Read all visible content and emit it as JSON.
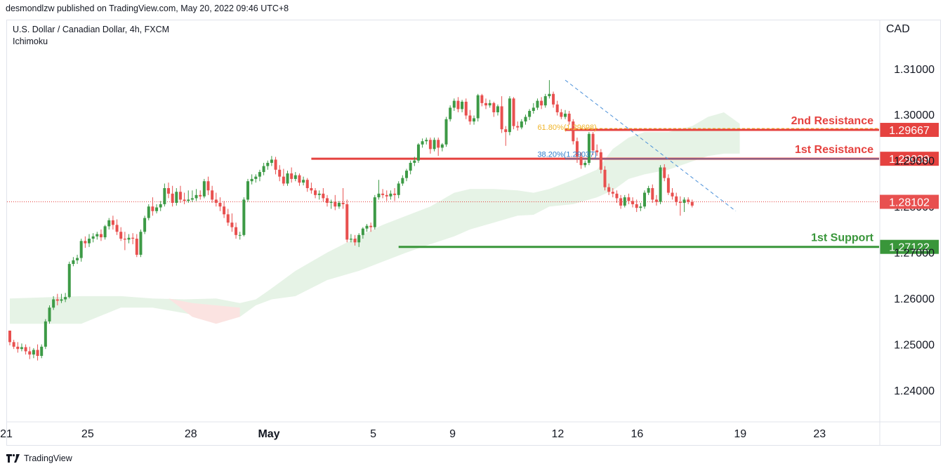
{
  "header": {
    "published_by": "desmondlzw published on TradingView.com, May 20, 2022 09:46 UTC+8"
  },
  "symbol": {
    "name": "U.S. Dollar / Canadian Dollar, 4h, FXCM",
    "indicator": "Ichimoku"
  },
  "currency": "CAD",
  "footer": {
    "brand": "TradingView"
  },
  "colors": {
    "up": "#3d9a46",
    "down": "#e8504f",
    "resistance": "#e5423f",
    "support": "#39963a",
    "cloud_bull": "#e6f3e6",
    "cloud_bear": "#fbe3e1",
    "fib_38": "#2f7dcc",
    "fib_61": "#f0b429",
    "trend": "#4a90d9",
    "price_line": "#e5423f"
  },
  "chart_data": {
    "type": "candlestick",
    "title": "U.S. Dollar / Canadian Dollar, 4h, FXCM",
    "ylim": [
      1.2333,
      1.3205
    ],
    "y_ticks": [
      "1.24000",
      "1.25000",
      "1.26000",
      "1.27000",
      "1.28000",
      "1.29000",
      "1.30000",
      "1.31000"
    ],
    "x_ticks": [
      {
        "label": "21",
        "i": 0
      },
      {
        "label": "25",
        "i": 20.5
      },
      {
        "label": "28",
        "i": 46.5
      },
      {
        "label": "May",
        "i": 66.2
      },
      {
        "label": "5",
        "i": 92.5
      },
      {
        "label": "9",
        "i": 112.5
      },
      {
        "label": "12",
        "i": 139
      },
      {
        "label": "16",
        "i": 159
      },
      {
        "label": "19",
        "i": 185
      },
      {
        "label": "23",
        "i": 205
      }
    ],
    "candles": [
      [
        1.253,
        1.2525,
        1.2505,
        1.2498
      ],
      [
        1.2505,
        1.251,
        1.2495,
        1.249
      ],
      [
        1.2495,
        1.2505,
        1.249,
        1.2482
      ],
      [
        1.249,
        1.2502,
        1.2494,
        1.2485
      ],
      [
        1.2494,
        1.25,
        1.2485,
        1.2478
      ],
      [
        1.2485,
        1.2495,
        1.2478,
        1.2468
      ],
      [
        1.2478,
        1.2492,
        1.2488,
        1.247
      ],
      [
        1.2488,
        1.25,
        1.2475,
        1.2465
      ],
      [
        1.2475,
        1.25,
        1.2495,
        1.247
      ],
      [
        1.2495,
        1.2555,
        1.255,
        1.249
      ],
      [
        1.255,
        1.2585,
        1.258,
        1.2545
      ],
      [
        1.258,
        1.2605,
        1.2598,
        1.2575
      ],
      [
        1.2598,
        1.261,
        1.2595,
        1.2585
      ],
      [
        1.2595,
        1.261,
        1.2598,
        1.259
      ],
      [
        1.2598,
        1.2612,
        1.2603,
        1.2592
      ],
      [
        1.2603,
        1.268,
        1.2675,
        1.26
      ],
      [
        1.2675,
        1.269,
        1.2683,
        1.267
      ],
      [
        1.2683,
        1.2695,
        1.2688,
        1.2675
      ],
      [
        1.2688,
        1.273,
        1.2725,
        1.268
      ],
      [
        1.2725,
        1.2735,
        1.272,
        1.271
      ],
      [
        1.272,
        1.274,
        1.273,
        1.2712
      ],
      [
        1.273,
        1.2742,
        1.2735,
        1.2722
      ],
      [
        1.2735,
        1.2745,
        1.274,
        1.2728
      ],
      [
        1.274,
        1.275,
        1.2733,
        1.2725
      ],
      [
        1.2733,
        1.276,
        1.2757,
        1.2728
      ],
      [
        1.2757,
        1.2775,
        1.277,
        1.275
      ],
      [
        1.277,
        1.278,
        1.276,
        1.275
      ],
      [
        1.276,
        1.2772,
        1.2745,
        1.2738
      ],
      [
        1.2745,
        1.2755,
        1.273,
        1.2725
      ],
      [
        1.273,
        1.2745,
        1.2728,
        1.2705
      ],
      [
        1.2728,
        1.274,
        1.2732,
        1.272
      ],
      [
        1.2732,
        1.2742,
        1.273,
        1.2718
      ],
      [
        1.273,
        1.274,
        1.2695,
        1.269
      ],
      [
        1.2695,
        1.275,
        1.2745,
        1.269
      ],
      [
        1.2745,
        1.278,
        1.2775,
        1.274
      ],
      [
        1.2775,
        1.2805,
        1.28,
        1.277
      ],
      [
        1.28,
        1.282,
        1.279,
        1.278
      ],
      [
        1.279,
        1.2805,
        1.2798,
        1.2785
      ],
      [
        1.2798,
        1.2812,
        1.2805,
        1.279
      ],
      [
        1.2805,
        1.285,
        1.284,
        1.28
      ],
      [
        1.284,
        1.2852,
        1.2828,
        1.2818
      ],
      [
        1.2828,
        1.2845,
        1.2808,
        1.28
      ],
      [
        1.2808,
        1.284,
        1.2832,
        1.2802
      ],
      [
        1.2832,
        1.2845,
        1.2815,
        1.2808
      ],
      [
        1.2815,
        1.283,
        1.2812,
        1.2805
      ],
      [
        1.2812,
        1.2835,
        1.2815,
        1.2808
      ],
      [
        1.2815,
        1.2835,
        1.2818,
        1.281
      ],
      [
        1.2818,
        1.2838,
        1.2825,
        1.2812
      ],
      [
        1.2825,
        1.2835,
        1.2822,
        1.2815
      ],
      [
        1.2822,
        1.286,
        1.2855,
        1.2818
      ],
      [
        1.2855,
        1.2865,
        1.2835,
        1.2825
      ],
      [
        1.2835,
        1.2845,
        1.2815,
        1.2808
      ],
      [
        1.2815,
        1.283,
        1.2808,
        1.28
      ],
      [
        1.2808,
        1.282,
        1.28,
        1.279
      ],
      [
        1.28,
        1.2812,
        1.2783,
        1.2775
      ],
      [
        1.2783,
        1.2795,
        1.2765,
        1.2758
      ],
      [
        1.2765,
        1.2785,
        1.2755,
        1.2745
      ],
      [
        1.2755,
        1.2765,
        1.2738,
        1.273
      ],
      [
        1.2738,
        1.2745,
        1.2738,
        1.2728
      ],
      [
        1.2738,
        1.282,
        1.2815,
        1.2735
      ],
      [
        1.2815,
        1.286,
        1.2855,
        1.281
      ],
      [
        1.2855,
        1.287,
        1.286,
        1.2848
      ],
      [
        1.286,
        1.287,
        1.2865,
        1.2852
      ],
      [
        1.2865,
        1.288,
        1.2875,
        1.2855
      ],
      [
        1.2875,
        1.2895,
        1.2888,
        1.2868
      ],
      [
        1.2888,
        1.29,
        1.2895,
        1.288
      ],
      [
        1.2895,
        1.291,
        1.2902,
        1.2888
      ],
      [
        1.2902,
        1.2908,
        1.288,
        1.287
      ],
      [
        1.288,
        1.289,
        1.2865,
        1.2855
      ],
      [
        1.2865,
        1.2882,
        1.285,
        1.2845
      ],
      [
        1.285,
        1.2878,
        1.2872,
        1.2845
      ],
      [
        1.2872,
        1.2885,
        1.286,
        1.2852
      ],
      [
        1.286,
        1.2875,
        1.2868,
        1.2855
      ],
      [
        1.2868,
        1.2872,
        1.2852,
        1.2845
      ],
      [
        1.2852,
        1.2865,
        1.2858,
        1.2846
      ],
      [
        1.2858,
        1.2862,
        1.284,
        1.2832
      ],
      [
        1.284,
        1.2852,
        1.2835,
        1.2828
      ],
      [
        1.2835,
        1.284,
        1.2825,
        1.2818
      ],
      [
        1.2825,
        1.2835,
        1.2828,
        1.2815
      ],
      [
        1.2828,
        1.284,
        1.2818,
        1.281
      ],
      [
        1.2818,
        1.2825,
        1.2808,
        1.28
      ],
      [
        1.2808,
        1.2815,
        1.281,
        1.2795
      ],
      [
        1.281,
        1.2825,
        1.28,
        1.2792
      ],
      [
        1.28,
        1.2812,
        1.2808,
        1.2795
      ],
      [
        1.2808,
        1.284,
        1.2805,
        1.2795
      ],
      [
        1.2805,
        1.2815,
        1.2728,
        1.2722
      ],
      [
        1.2728,
        1.274,
        1.273,
        1.2722
      ],
      [
        1.273,
        1.2738,
        1.2722,
        1.2715
      ],
      [
        1.2722,
        1.2742,
        1.2738,
        1.2712
      ],
      [
        1.2738,
        1.2755,
        1.2752,
        1.273
      ],
      [
        1.2752,
        1.2762,
        1.2758,
        1.2745
      ],
      [
        1.2758,
        1.2765,
        1.2755,
        1.2745
      ],
      [
        1.2755,
        1.2825,
        1.282,
        1.275
      ],
      [
        1.282,
        1.2858,
        1.2828,
        1.2815
      ],
      [
        1.2828,
        1.2838,
        1.2825,
        1.2818
      ],
      [
        1.2825,
        1.2835,
        1.2822,
        1.2812
      ],
      [
        1.2822,
        1.2835,
        1.2828,
        1.2815
      ],
      [
        1.2828,
        1.284,
        1.2825,
        1.2812
      ],
      [
        1.2825,
        1.2855,
        1.285,
        1.2818
      ],
      [
        1.285,
        1.2868,
        1.2862,
        1.2845
      ],
      [
        1.2862,
        1.2882,
        1.2878,
        1.2855
      ],
      [
        1.2878,
        1.29,
        1.2895,
        1.287
      ],
      [
        1.2895,
        1.2908,
        1.29,
        1.2888
      ],
      [
        1.29,
        1.2938,
        1.2935,
        1.2895
      ],
      [
        1.2935,
        1.2948,
        1.2942,
        1.2928
      ],
      [
        1.2942,
        1.295,
        1.2945,
        1.2935
      ],
      [
        1.2945,
        1.295,
        1.2925,
        1.2915
      ],
      [
        1.2925,
        1.295,
        1.2945,
        1.292
      ],
      [
        1.2945,
        1.295,
        1.2928,
        1.291
      ],
      [
        1.2928,
        1.2938,
        1.2935,
        1.292
      ],
      [
        1.2935,
        1.2995,
        1.299,
        1.293
      ],
      [
        1.299,
        1.302,
        1.3015,
        1.2985
      ],
      [
        1.3015,
        1.3035,
        1.303,
        1.3008
      ],
      [
        1.303,
        1.3038,
        1.3012,
        1.3005
      ],
      [
        1.3012,
        1.3032,
        1.3028,
        1.3005
      ],
      [
        1.3028,
        1.3035,
        1.2998,
        1.299
      ],
      [
        1.2998,
        1.301,
        1.2985,
        1.2978
      ],
      [
        1.2985,
        1.2998,
        1.2992,
        1.2978
      ],
      [
        1.2992,
        1.3045,
        1.3042,
        1.2985
      ],
      [
        1.3042,
        1.3045,
        1.3025,
        1.3018
      ],
      [
        1.3025,
        1.3035,
        1.302,
        1.3012
      ],
      [
        1.302,
        1.3032,
        1.3025,
        1.3015
      ],
      [
        1.3025,
        1.3028,
        1.3005,
        1.2995
      ],
      [
        1.3005,
        1.3022,
        1.3018,
        1.2998
      ],
      [
        1.3018,
        1.304,
        1.2968,
        1.296
      ],
      [
        1.2968,
        1.2975,
        1.2962,
        1.2932
      ],
      [
        1.2962,
        1.304,
        1.3035,
        1.2955
      ],
      [
        1.3035,
        1.3038,
        1.2975,
        1.2968
      ],
      [
        1.2975,
        1.2985,
        1.2972,
        1.2965
      ],
      [
        1.2972,
        1.299,
        1.2985,
        1.2968
      ],
      [
        1.2985,
        1.3,
        1.2995,
        1.2978
      ],
      [
        1.2995,
        1.3012,
        1.3008,
        1.2988
      ],
      [
        1.3008,
        1.3025,
        1.3015,
        1.3002
      ],
      [
        1.3015,
        1.3035,
        1.303,
        1.301
      ],
      [
        1.303,
        1.3038,
        1.302,
        1.3012
      ],
      [
        1.302,
        1.3045,
        1.304,
        1.3015
      ],
      [
        1.304,
        1.3075,
        1.3045,
        1.3035
      ],
      [
        1.3045,
        1.305,
        1.3022,
        1.3015
      ],
      [
        1.3022,
        1.303,
        1.3005,
        1.2998
      ],
      [
        1.3005,
        1.3012,
        1.2995,
        1.299
      ],
      [
        1.2995,
        1.301,
        1.3002,
        1.299
      ],
      [
        1.3002,
        1.3008,
        1.2985,
        1.2978
      ],
      [
        1.2985,
        1.299,
        1.2942,
        1.2935
      ],
      [
        1.2942,
        1.295,
        1.2908,
        1.2895
      ],
      [
        1.2908,
        1.2918,
        1.289,
        1.2882
      ],
      [
        1.289,
        1.29,
        1.2895,
        1.2885
      ],
      [
        1.2895,
        1.2962,
        1.2958,
        1.289
      ],
      [
        1.2958,
        1.2962,
        1.2922,
        1.2912
      ],
      [
        1.2922,
        1.2935,
        1.2918,
        1.291
      ],
      [
        1.2918,
        1.2925,
        1.288,
        1.2872
      ],
      [
        1.288,
        1.2888,
        1.2842,
        1.2835
      ],
      [
        1.2842,
        1.285,
        1.2832,
        1.2825
      ],
      [
        1.2832,
        1.284,
        1.2828,
        1.282
      ],
      [
        1.2828,
        1.2835,
        1.2818,
        1.2808
      ],
      [
        1.2818,
        1.2825,
        1.2802,
        1.2795
      ],
      [
        1.2802,
        1.2825,
        1.282,
        1.2798
      ],
      [
        1.282,
        1.2828,
        1.2812,
        1.2805
      ],
      [
        1.2812,
        1.282,
        1.2805,
        1.2798
      ],
      [
        1.2805,
        1.2815,
        1.2797,
        1.2788
      ],
      [
        1.2797,
        1.2808,
        1.28,
        1.279
      ],
      [
        1.28,
        1.2835,
        1.283,
        1.2795
      ],
      [
        1.283,
        1.2845,
        1.284,
        1.2825
      ],
      [
        1.284,
        1.2848,
        1.2815,
        1.2808
      ],
      [
        1.2815,
        1.2825,
        1.281,
        1.2802
      ],
      [
        1.281,
        1.289,
        1.2885,
        1.2805
      ],
      [
        1.2885,
        1.2892,
        1.2862,
        1.2855
      ],
      [
        1.2862,
        1.287,
        1.283,
        1.2825
      ],
      [
        1.283,
        1.284,
        1.2822,
        1.2815
      ],
      [
        1.2822,
        1.283,
        1.281,
        1.2802
      ],
      [
        1.281,
        1.2822,
        1.2808,
        1.278
      ],
      [
        1.2808,
        1.282,
        1.2815,
        1.2788
      ],
      [
        1.2815,
        1.282,
        1.281,
        1.2805
      ],
      [
        1.281,
        1.2815,
        1.2802,
        1.2798
      ]
    ],
    "cloud": [
      [
        0,
        1.26,
        1.2545
      ],
      [
        18,
        1.2605,
        1.2545
      ],
      [
        28,
        1.2605,
        1.258
      ],
      [
        36,
        1.26,
        1.258
      ],
      [
        44,
        1.2598,
        1.2568
      ],
      [
        52,
        1.26,
        1.2555
      ],
      [
        58,
        1.259,
        1.256
      ],
      [
        62,
        1.2598,
        1.2585
      ],
      [
        66,
        1.2622,
        1.2598
      ],
      [
        72,
        1.266,
        1.2605
      ],
      [
        80,
        1.27,
        1.264
      ],
      [
        88,
        1.2735,
        1.266
      ],
      [
        94,
        1.276,
        1.268
      ],
      [
        100,
        1.278,
        1.27
      ],
      [
        106,
        1.28,
        1.2718
      ],
      [
        112,
        1.283,
        1.2735
      ],
      [
        116,
        1.2838,
        1.275
      ],
      [
        122,
        1.2838,
        1.2765
      ],
      [
        128,
        1.2835,
        1.278
      ],
      [
        132,
        1.283,
        1.2782
      ],
      [
        136,
        1.2838,
        1.28
      ],
      [
        142,
        1.2858,
        1.2805
      ],
      [
        148,
        1.288,
        1.282
      ],
      [
        152,
        1.2925,
        1.2835
      ],
      [
        156,
        1.295,
        1.286
      ],
      [
        160,
        1.2962,
        1.287
      ],
      [
        166,
        1.2962,
        1.288
      ],
      [
        172,
        1.2975,
        1.2898
      ],
      [
        176,
        1.2995,
        1.291
      ],
      [
        180,
        1.3005,
        1.2915
      ],
      [
        184,
        1.298,
        1.2915
      ]
    ],
    "cloud_bear": [
      [
        40,
        1.26,
        1.26
      ],
      [
        46,
        1.259,
        1.256
      ],
      [
        52,
        1.2585,
        1.2545
      ],
      [
        58,
        1.258,
        1.256
      ]
    ],
    "levels": [
      {
        "name": "2nd Resistance",
        "value": "1.29667",
        "price": 1.29667
      },
      {
        "name": "1st Resistance",
        "value": "1.29039",
        "price": 1.29039
      },
      {
        "name": "1st Support",
        "value": "1.27122",
        "price": 1.27122
      }
    ],
    "current_price": "1.28102",
    "current_price_value": 1.28102,
    "fib_levels": [
      {
        "label": "38.20%(1.29037)",
        "price": 1.29037
      },
      {
        "label": "61.80%(1.29698)",
        "price": 1.29698
      }
    ],
    "trendline": [
      [
        140,
        1.3075
      ],
      [
        183,
        1.279
      ]
    ]
  }
}
